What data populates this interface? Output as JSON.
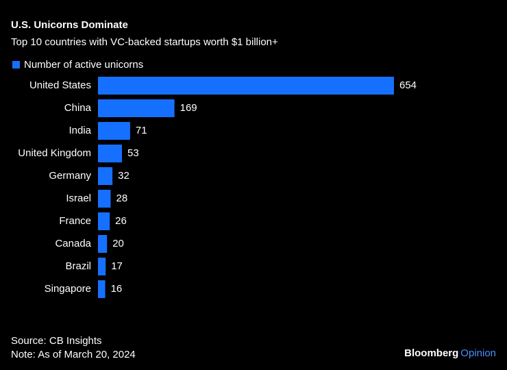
{
  "chart_data": {
    "type": "hbar",
    "title": "U.S. Unicorns Dominate",
    "subtitle": "Top 10 countries with VC-backed startups worth $1 billion+",
    "categories": [
      "United States",
      "China",
      "India",
      "United Kingdom",
      "Germany",
      "Israel",
      "France",
      "Canada",
      "Brazil",
      "Singapore"
    ],
    "series": [
      {
        "name": "Number of active unicorns",
        "color": "#1670ff",
        "values": [
          654,
          169,
          71,
          53,
          32,
          28,
          26,
          20,
          17,
          16
        ]
      }
    ],
    "source": "Source: CB Insights",
    "note": "Note: As of March 20, 2024",
    "logo": [
      "Bloomberg",
      "Opinion"
    ]
  }
}
